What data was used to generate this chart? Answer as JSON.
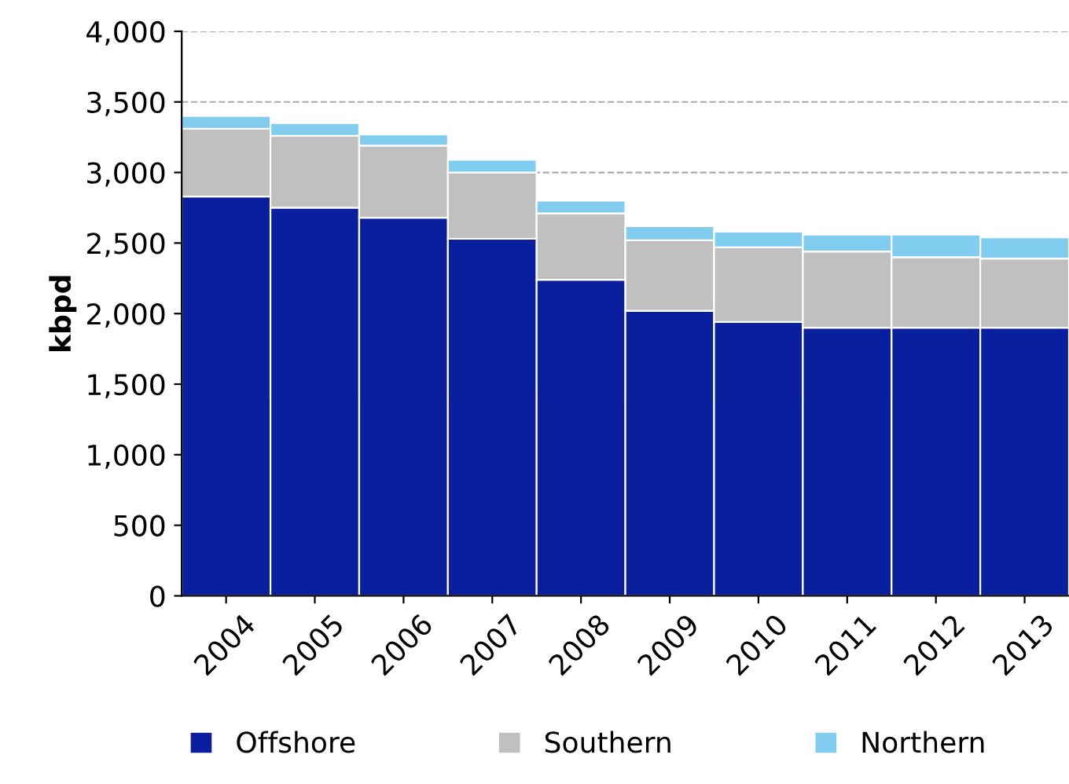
{
  "chart_data": {
    "type": "bar",
    "stacked": true,
    "ylabel": "kbpd",
    "categories": [
      "2004",
      "2005",
      "2006",
      "2007",
      "2008",
      "2009",
      "2010",
      "2011",
      "2012",
      "2013"
    ],
    "series": [
      {
        "name": "Offshore",
        "color": "#0a1f9e",
        "values": [
          2830,
          2750,
          2680,
          2530,
          2240,
          2020,
          1940,
          1900,
          1900,
          1900
        ]
      },
      {
        "name": "Southern",
        "color": "#c0c0c0",
        "values": [
          480,
          510,
          510,
          470,
          470,
          500,
          530,
          540,
          500,
          490
        ]
      },
      {
        "name": "Northern",
        "color": "#80cdef",
        "values": [
          90,
          90,
          80,
          90,
          90,
          100,
          110,
          120,
          160,
          150
        ]
      }
    ],
    "ylim": [
      0,
      4000
    ],
    "yticks": [
      {
        "value": 0,
        "label": "0"
      },
      {
        "value": 500,
        "label": "500"
      },
      {
        "value": 1000,
        "label": "1,000"
      },
      {
        "value": 1500,
        "label": "1,500"
      },
      {
        "value": 2000,
        "label": "2,000"
      },
      {
        "value": 2500,
        "label": "2,500"
      },
      {
        "value": 3000,
        "label": "3,000"
      },
      {
        "value": 3500,
        "label": "3,500"
      },
      {
        "value": 4000,
        "label": "4,000"
      }
    ],
    "grid": "y",
    "legend": "bottom"
  }
}
